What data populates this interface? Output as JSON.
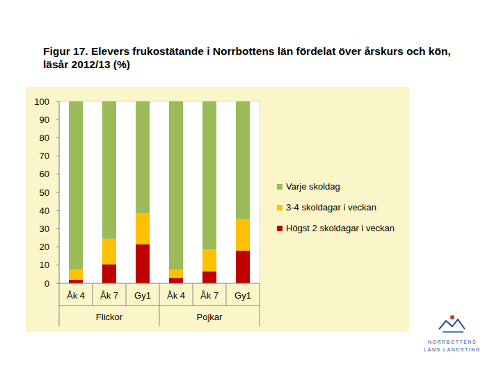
{
  "chart_data": {
    "type": "bar",
    "stacked": true,
    "title": "Figur 17. Elevers frukostätande i Norrbottens län fördelat över årskurs och kön, läsår 2012/13 (%)",
    "categories": [
      "Åk 4",
      "Åk 7",
      "Gy1",
      "Åk 4",
      "Åk 7",
      "Gy1"
    ],
    "groups": [
      "Flickor",
      "Pojkar"
    ],
    "series": [
      {
        "name": "Högst 2 skoldagar i veckan",
        "color": "#c00000",
        "values": [
          2,
          10.5,
          21.5,
          3,
          6.5,
          18
        ]
      },
      {
        "name": "3-4 skoldagar i veckan",
        "color": "#ffc000",
        "values": [
          5.5,
          14,
          17,
          4.5,
          12,
          17.5
        ]
      },
      {
        "name": "Varje skoldag",
        "color": "#9bbb59",
        "values": [
          92.5,
          75.5,
          61.5,
          92.5,
          81.5,
          64.5
        ]
      }
    ],
    "ylim": [
      0,
      100
    ],
    "yticks": [
      0,
      10,
      20,
      30,
      40,
      50,
      60,
      70,
      80,
      90,
      100
    ],
    "grid": false,
    "legend": "right"
  },
  "logo": {
    "line1": "NORRBOTTENS",
    "line2": "LÄNS LANDSTING"
  }
}
